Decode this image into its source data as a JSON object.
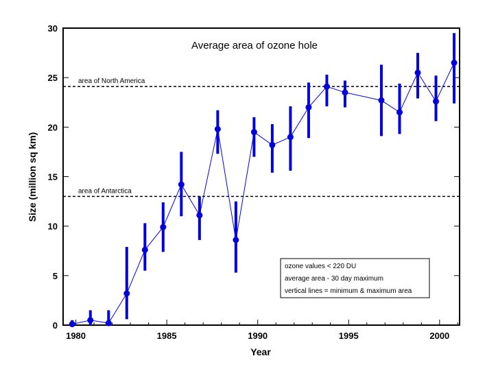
{
  "chart_data": {
    "type": "scatter",
    "title": "Average area of ozone hole",
    "xlabel": "Year",
    "ylabel": "Size (million sq km)",
    "xlim": [
      1979.3,
      2001.1
    ],
    "ylim": [
      0,
      30
    ],
    "xticks": [
      1980,
      1985,
      1990,
      1995,
      2000
    ],
    "yticks": [
      0,
      5,
      10,
      15,
      20,
      25,
      30
    ],
    "grid": false,
    "series": [
      {
        "color": "#0000dd",
        "line": true,
        "error_bars": true,
        "points": [
          {
            "x": 1979.8,
            "y": 0.1,
            "min": 0.0,
            "max": 0.5
          },
          {
            "x": 1980.8,
            "y": 0.5,
            "min": 0.0,
            "max": 1.5
          },
          {
            "x": 1981.8,
            "y": 0.2,
            "min": 0.0,
            "max": 1.5
          },
          {
            "x": 1982.8,
            "y": 3.2,
            "min": 0.6,
            "max": 7.9
          },
          {
            "x": 1983.8,
            "y": 7.6,
            "min": 5.5,
            "max": 10.3
          },
          {
            "x": 1984.8,
            "y": 9.9,
            "min": 7.4,
            "max": 12.4
          },
          {
            "x": 1985.8,
            "y": 14.2,
            "min": 11.0,
            "max": 17.5
          },
          {
            "x": 1986.8,
            "y": 11.1,
            "min": 8.6,
            "max": 13.0
          },
          {
            "x": 1987.8,
            "y": 19.8,
            "min": 17.3,
            "max": 21.7
          },
          {
            "x": 1988.8,
            "y": 8.6,
            "min": 5.3,
            "max": 12.5
          },
          {
            "x": 1989.8,
            "y": 19.5,
            "min": 17.0,
            "max": 21.0
          },
          {
            "x": 1990.8,
            "y": 18.2,
            "min": 15.4,
            "max": 20.3
          },
          {
            "x": 1991.8,
            "y": 19.0,
            "min": 15.6,
            "max": 22.1
          },
          {
            "x": 1992.8,
            "y": 22.0,
            "min": 18.9,
            "max": 24.5
          },
          {
            "x": 1993.8,
            "y": 24.1,
            "min": 22.1,
            "max": 25.3
          },
          {
            "x": 1994.8,
            "y": 23.5,
            "min": 22.0,
            "max": 24.7
          },
          {
            "x": 1996.8,
            "y": 22.7,
            "min": 19.1,
            "max": 26.3
          },
          {
            "x": 1997.8,
            "y": 21.5,
            "min": 19.3,
            "max": 24.4
          },
          {
            "x": 1998.8,
            "y": 25.5,
            "min": 22.9,
            "max": 27.5
          },
          {
            "x": 1999.8,
            "y": 22.6,
            "min": 20.6,
            "max": 25.2
          },
          {
            "x": 2000.8,
            "y": 26.5,
            "min": 22.4,
            "max": 29.5
          }
        ]
      }
    ],
    "reference_lines": [
      {
        "label": "area of North America",
        "y": 24.1
      },
      {
        "label": "area of Antarctica",
        "y": 13.0
      }
    ],
    "legend_lines": [
      "ozone values < 220 DU",
      "average area - 30 day maximum",
      "vertical lines = minimum & maximum area"
    ],
    "legend_position": "bottom-right"
  }
}
